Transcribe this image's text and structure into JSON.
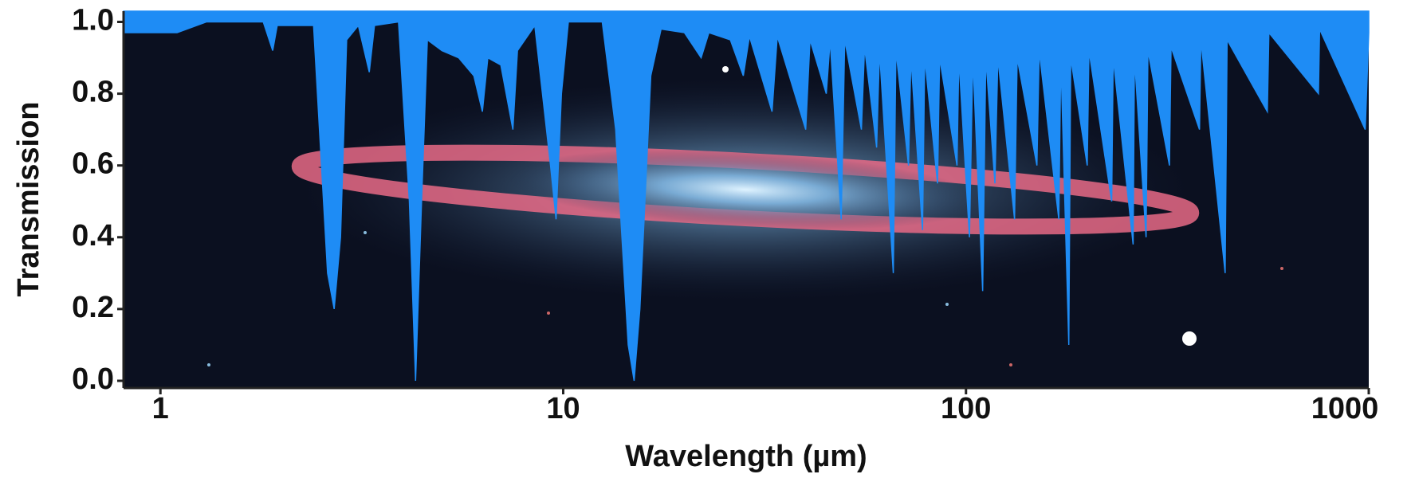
{
  "chart_data": {
    "type": "area",
    "x_label": "Wavelength (µm)",
    "y_label": "Transmission",
    "log_x": true,
    "xlim": [
      0.81,
      1000
    ],
    "xticks": [
      1,
      10,
      100,
      1000
    ],
    "ylim": [
      -0.02,
      1.03
    ],
    "yticks": [
      {
        "value": 0,
        "label": "0.0"
      },
      0.2,
      0.4,
      0.6,
      0.8,
      {
        "value": 1,
        "label": "1.0"
      }
    ],
    "series": [
      {
        "color": "#1e8cf5",
        "x": [
          0.81,
          1.1,
          1.3,
          1.8,
          1.9,
          1.95,
          2.4,
          2.6,
          2.7,
          2.8,
          2.9,
          3.1,
          3.3,
          3.4,
          3.9,
          4.15,
          4.3,
          4.45,
          4.6,
          5.0,
          5.5,
          6.0,
          6.3,
          6.5,
          7.0,
          7.5,
          7.7,
          8.5,
          9.3,
          9.6,
          9.9,
          10.3,
          12.5,
          13.5,
          14.5,
          15,
          15.5,
          16.5,
          17.5,
          20,
          22,
          23,
          26,
          28,
          29,
          33,
          34,
          40,
          41,
          45,
          46,
          49,
          50,
          55,
          56,
          60,
          61,
          66,
          67,
          72,
          73,
          78,
          79,
          85,
          86,
          95,
          96,
          102,
          104,
          110,
          112,
          118,
          120,
          132,
          134,
          150,
          152,
          170,
          172,
          180,
          182,
          200,
          202,
          230,
          232,
          260,
          262,
          280,
          283,
          320,
          323,
          380,
          383,
          440,
          445,
          560,
          565,
          750,
          755,
          980,
          1000
        ],
        "values": [
          0.97,
          0.97,
          1.0,
          1.0,
          0.92,
          0.99,
          0.99,
          0.3,
          0.2,
          0.4,
          0.95,
          0.99,
          0.86,
          0.99,
          1.0,
          0.5,
          0.0,
          0.5,
          0.95,
          0.92,
          0.9,
          0.85,
          0.75,
          0.9,
          0.88,
          0.7,
          0.92,
          0.99,
          0.6,
          0.45,
          0.8,
          1.0,
          1.0,
          0.7,
          0.1,
          0.0,
          0.2,
          0.85,
          0.98,
          0.97,
          0.9,
          0.97,
          0.95,
          0.85,
          0.96,
          0.75,
          0.96,
          0.7,
          0.95,
          0.8,
          0.95,
          0.45,
          0.95,
          0.7,
          0.93,
          0.65,
          0.92,
          0.3,
          0.92,
          0.6,
          0.9,
          0.42,
          0.9,
          0.55,
          0.9,
          0.6,
          0.9,
          0.4,
          0.9,
          0.25,
          0.9,
          0.55,
          0.9,
          0.45,
          0.9,
          0.6,
          0.92,
          0.45,
          0.9,
          0.1,
          0.9,
          0.6,
          0.92,
          0.5,
          0.9,
          0.38,
          0.9,
          0.4,
          0.92,
          0.6,
          0.93,
          0.7,
          0.95,
          0.3,
          0.95,
          0.75,
          0.97,
          0.8,
          0.98,
          0.7,
          0.97
        ]
      }
    ]
  }
}
